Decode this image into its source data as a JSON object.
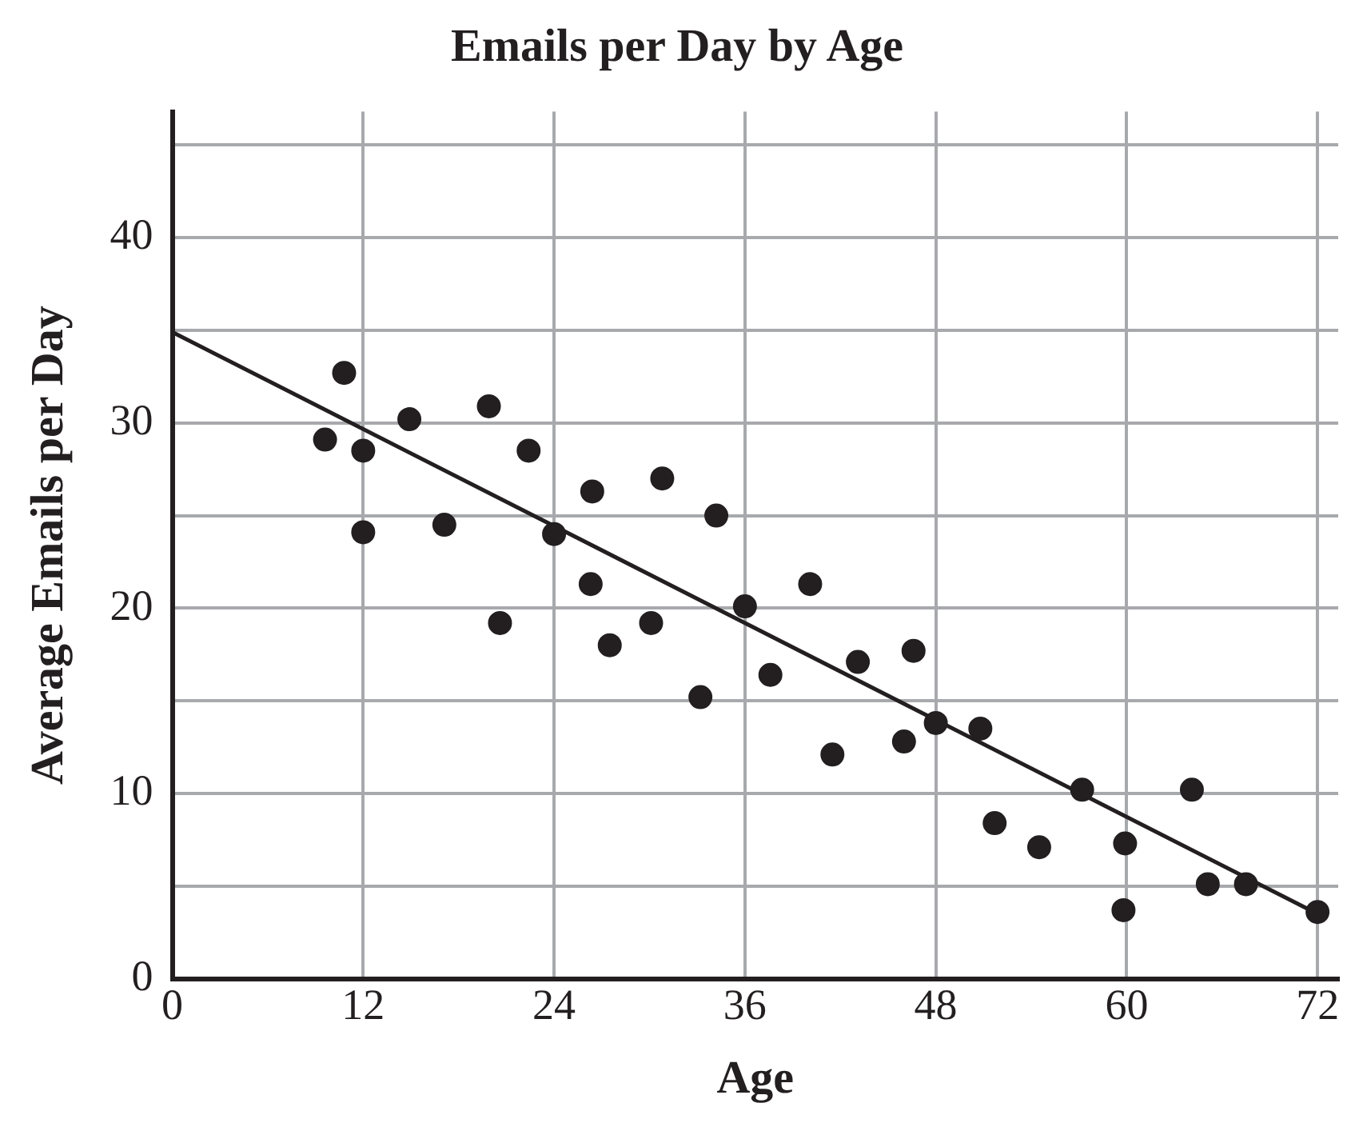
{
  "chart_data": {
    "type": "scatter",
    "title": "Emails per Day by Age",
    "xlabel": "Age",
    "ylabel": "Average Emails per Day",
    "xlim": [
      0,
      73.3
    ],
    "xticks": [
      0,
      12,
      24,
      36,
      48,
      60,
      72
    ],
    "ylim": [
      0,
      46.8
    ],
    "yticks": [
      0,
      {
        "value": 5,
        "label": null
      },
      10,
      {
        "value": 15,
        "label": null
      },
      20,
      {
        "value": 25,
        "label": null
      },
      30,
      {
        "value": 35,
        "label": null
      },
      40,
      {
        "value": 45,
        "label": null
      }
    ],
    "grid": true,
    "legend": false,
    "marker": "circle",
    "series": [
      {
        "color": "#231f20",
        "x": [
          9.6,
          10.8,
          12,
          12,
          14.9,
          17.1,
          19.9,
          20.6,
          22.4,
          24,
          26.4,
          26.3,
          27.5,
          30.1,
          30.8,
          33.2,
          34.2,
          36,
          40.1,
          37.6,
          43.1,
          46.6,
          41.5,
          46,
          48,
          50.8,
          51.7,
          54.5,
          57.2,
          59.9,
          59.8,
          64.1,
          65.1,
          67.5,
          72
        ],
        "values": [
          29.1,
          32.7,
          28.5,
          24.1,
          30.2,
          24.5,
          30.9,
          19.2,
          28.5,
          24,
          26.3,
          21.3,
          18,
          19.2,
          27,
          15.2,
          25,
          20.1,
          21.3,
          16.4,
          17.1,
          17.7,
          12.1,
          12.8,
          13.8,
          13.5,
          8.4,
          7.1,
          10.2,
          7.3,
          3.7,
          10.2,
          5.1,
          5.1,
          3.6
        ]
      },
      {
        "type": "line",
        "color": "#231f20",
        "marker": "none",
        "x": [
          0,
          72
        ],
        "values": [
          34.9,
          3.5
        ]
      }
    ]
  }
}
